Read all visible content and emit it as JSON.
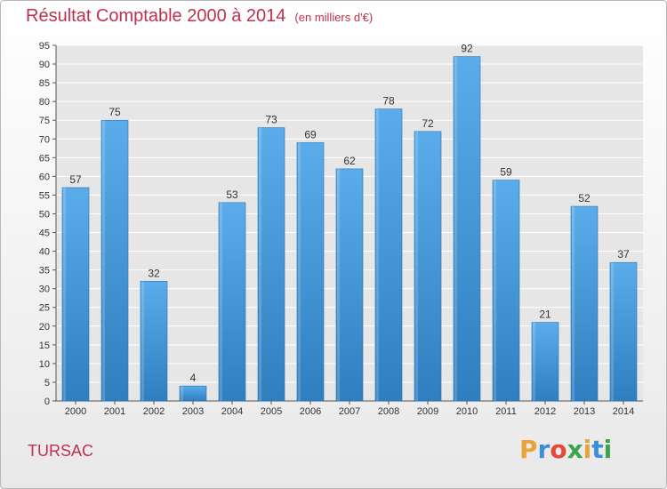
{
  "title": "Résultat Comptable 2000 à 2014",
  "unit": "(en milliers d'€)",
  "commune": "TURSAC",
  "logo": {
    "letters": [
      "P",
      "r",
      "o",
      "x",
      "i",
      "t",
      "i"
    ],
    "colors": [
      "#e8a33a",
      "#3b8fd8",
      "#e34a3a",
      "#3aa54a",
      "#e8a33a",
      "#3b8fd8",
      "#3aa54a"
    ]
  },
  "colors": {
    "bar_top": "#5aacea",
    "bar_bottom": "#2f7fc0",
    "title": "#c0304f"
  },
  "chart_data": {
    "type": "bar",
    "title": "Résultat Comptable 2000 à 2014",
    "categories": [
      "2000",
      "2001",
      "2002",
      "2003",
      "2004",
      "2005",
      "2006",
      "2007",
      "2008",
      "2009",
      "2010",
      "2011",
      "2012",
      "2013",
      "2014"
    ],
    "values": [
      57,
      75,
      32,
      4,
      53,
      73,
      69,
      62,
      78,
      72,
      92,
      59,
      21,
      52,
      37
    ],
    "ylim": [
      0,
      95
    ],
    "yticks": [
      0,
      5,
      10,
      15,
      20,
      25,
      30,
      35,
      40,
      45,
      50,
      55,
      60,
      65,
      70,
      75,
      80,
      85,
      90,
      95
    ],
    "xlabel": "",
    "ylabel": "",
    "grid": true
  }
}
